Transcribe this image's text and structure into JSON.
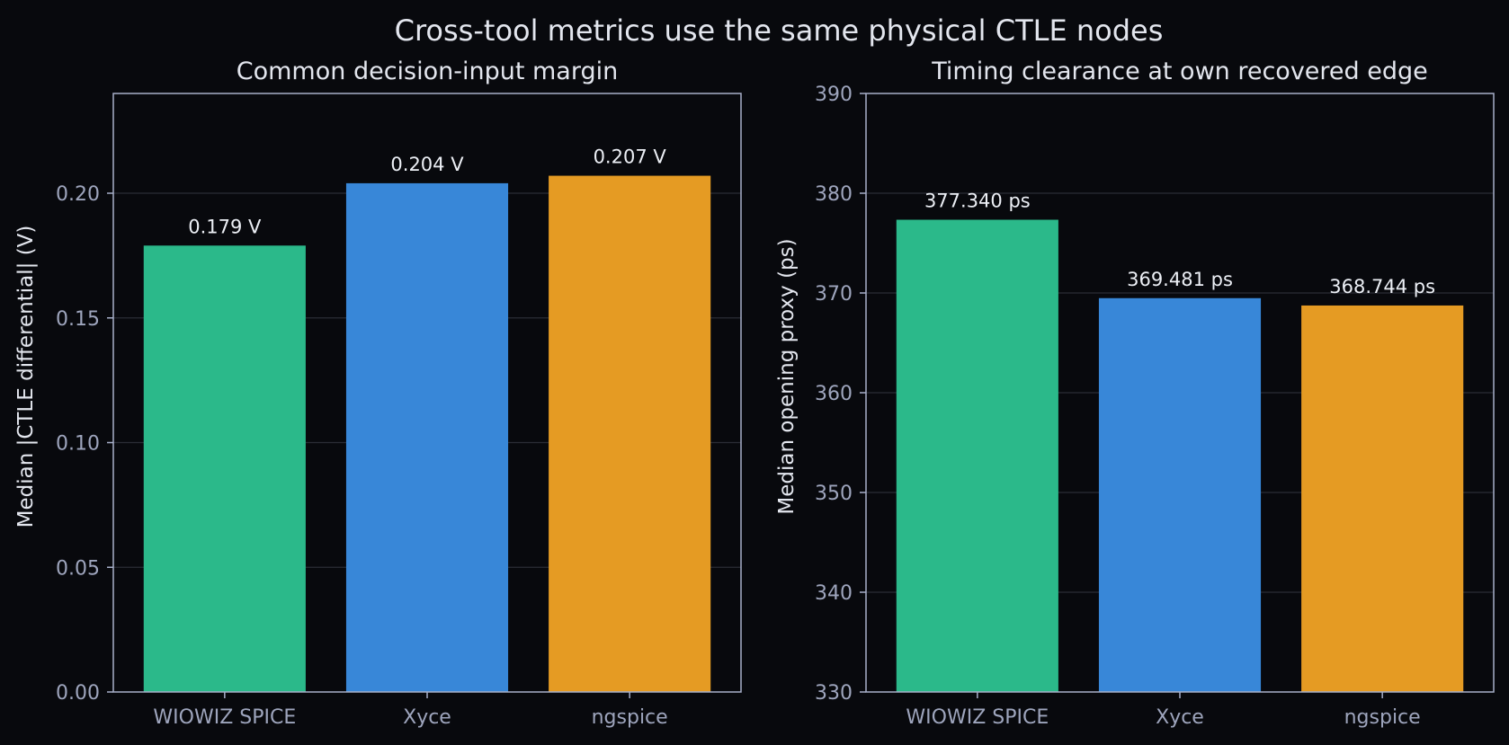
{
  "title": "Cross-tool metrics use the same physical CTLE nodes",
  "chart_data": [
    {
      "type": "bar",
      "title": "Common decision-input margin",
      "ylabel": "Median |CTLE differential| (V)",
      "xlabel": "",
      "categories": [
        "WIOWIZ SPICE",
        "Xyce",
        "ngspice"
      ],
      "values": [
        0.179,
        0.204,
        0.207
      ],
      "value_labels": [
        "0.179 V",
        "0.204 V",
        "0.207 V"
      ],
      "colors": [
        "#2bb98a",
        "#3887d8",
        "#e59b23"
      ],
      "ylim": [
        0,
        0.24
      ],
      "yticks": [
        0.0,
        0.05,
        0.1,
        0.15,
        0.2
      ],
      "ytick_labels": [
        "0.00",
        "0.05",
        "0.10",
        "0.15",
        "0.20"
      ],
      "grid": true
    },
    {
      "type": "bar",
      "title": "Timing clearance at own recovered edge",
      "ylabel": "Median opening proxy (ps)",
      "xlabel": "",
      "categories": [
        "WIOWIZ SPICE",
        "Xyce",
        "ngspice"
      ],
      "values": [
        377.34,
        369.481,
        368.744
      ],
      "value_labels": [
        "377.340 ps",
        "369.481 ps",
        "368.744 ps"
      ],
      "colors": [
        "#2bb98a",
        "#3887d8",
        "#e59b23"
      ],
      "ylim": [
        330,
        390
      ],
      "yticks": [
        330,
        340,
        350,
        360,
        370,
        380,
        390
      ],
      "ytick_labels": [
        "330",
        "340",
        "350",
        "360",
        "370",
        "380",
        "390"
      ],
      "grid": true
    }
  ]
}
